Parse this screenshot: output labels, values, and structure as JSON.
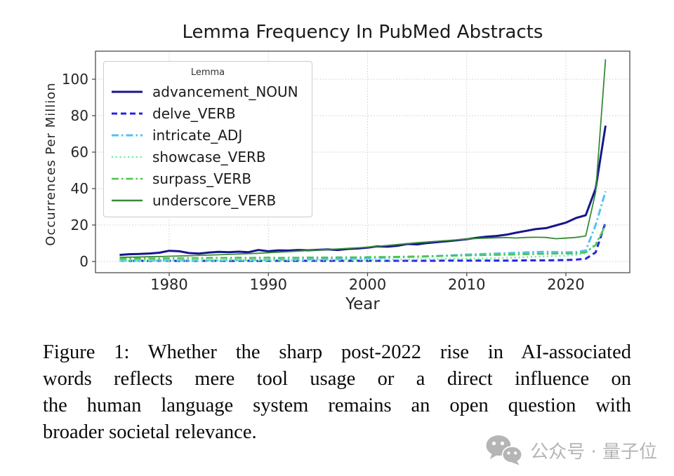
{
  "figure": {
    "title": "Lemma Frequency In PubMed Abstracts",
    "xlabel": "Year",
    "ylabel": "Occurrences Per Million",
    "legend_title": "Lemma"
  },
  "chart_data": {
    "type": "line",
    "title": "Lemma Frequency In PubMed Abstracts",
    "xlabel": "Year",
    "ylabel": "Occurrences Per Million",
    "legend_title": "Lemma",
    "legend_position": "upper left",
    "grid": true,
    "grid_style": "dotted",
    "xlim": [
      1972.6,
      2026.4
    ],
    "ylim": [
      -6.2,
      115.4
    ],
    "xticks": [
      1980,
      1990,
      2000,
      2010,
      2020
    ],
    "yticks": [
      0,
      20,
      40,
      60,
      80,
      100
    ],
    "x": [
      1975,
      1976,
      1977,
      1978,
      1979,
      1980,
      1981,
      1982,
      1983,
      1984,
      1985,
      1986,
      1987,
      1988,
      1989,
      1990,
      1991,
      1992,
      1993,
      1994,
      1995,
      1996,
      1997,
      1998,
      1999,
      2000,
      2001,
      2002,
      2003,
      2004,
      2005,
      2006,
      2007,
      2008,
      2009,
      2010,
      2011,
      2012,
      2013,
      2014,
      2015,
      2016,
      2017,
      2018,
      2019,
      2020,
      2021,
      2022,
      2023,
      2024
    ],
    "series": [
      {
        "name": "advancement_NOUN",
        "color": "#16168C",
        "dash": "solid",
        "width": 3,
        "values": [
          3.6,
          4.0,
          4.1,
          4.4,
          4.8,
          5.9,
          5.6,
          4.6,
          4.3,
          4.9,
          5.3,
          5.1,
          5.4,
          5.1,
          6.3,
          5.6,
          6.1,
          6.0,
          6.3,
          6.1,
          6.4,
          6.6,
          6.3,
          6.9,
          7.1,
          7.6,
          8.3,
          8.1,
          8.6,
          9.6,
          9.4,
          10.1,
          10.6,
          11.1,
          11.6,
          12.2,
          13.0,
          13.6,
          14.0,
          14.7,
          15.8,
          16.8,
          17.8,
          18.3,
          19.8,
          21.3,
          23.8,
          25.4,
          40.0,
          74.5
        ]
      },
      {
        "name": "delve_VERB",
        "color": "#2424E0",
        "dash": "dashed",
        "width": 3,
        "values": [
          0.4,
          0.3,
          0.4,
          0.3,
          0.4,
          0.4,
          0.3,
          0.4,
          0.3,
          0.4,
          0.4,
          0.3,
          0.4,
          0.4,
          0.3,
          0.4,
          0.4,
          0.3,
          0.4,
          0.4,
          0.4,
          0.3,
          0.4,
          0.4,
          0.4,
          0.4,
          0.4,
          0.4,
          0.4,
          0.4,
          0.4,
          0.4,
          0.4,
          0.5,
          0.5,
          0.5,
          0.5,
          0.5,
          0.5,
          0.5,
          0.5,
          0.6,
          0.6,
          0.6,
          0.7,
          0.8,
          1.0,
          1.5,
          5.0,
          21.5
        ]
      },
      {
        "name": "intricate_ADJ",
        "color": "#53C1F0",
        "dash": "dashdot",
        "width": 3,
        "values": [
          0.5,
          0.5,
          0.5,
          0.5,
          0.6,
          0.6,
          0.6,
          0.6,
          0.7,
          0.7,
          0.7,
          0.7,
          0.8,
          0.8,
          0.9,
          0.9,
          1.0,
          1.0,
          1.1,
          1.1,
          1.2,
          1.3,
          1.4,
          1.5,
          1.7,
          1.8,
          2.0,
          2.2,
          2.4,
          2.5,
          2.6,
          2.8,
          3.0,
          3.2,
          3.5,
          3.8,
          4.0,
          4.2,
          4.4,
          4.5,
          4.8,
          5.0,
          5.2,
          5.3,
          5.2,
          5.0,
          5.2,
          6.0,
          20.0,
          38.5
        ]
      },
      {
        "name": "showcase_VERB",
        "color": "#76E8A1",
        "dash": "dotted",
        "width": 2.5,
        "values": [
          0.3,
          0.3,
          0.3,
          0.3,
          0.3,
          0.4,
          0.4,
          0.4,
          0.4,
          0.4,
          0.5,
          1.2,
          0.6,
          0.5,
          0.5,
          0.6,
          0.6,
          0.6,
          0.7,
          0.7,
          0.7,
          0.8,
          0.8,
          0.8,
          0.9,
          0.9,
          1.0,
          1.0,
          1.1,
          1.1,
          1.2,
          1.3,
          1.3,
          1.4,
          1.5,
          1.5,
          1.6,
          1.7,
          1.8,
          2.0,
          2.2,
          2.4,
          2.6,
          2.8,
          3.0,
          3.2,
          3.6,
          4.5,
          10.0,
          19.5
        ]
      },
      {
        "name": "surpass_VERB",
        "color": "#4CC44C",
        "dash": "dashdot",
        "width": 2.5,
        "values": [
          1.5,
          1.6,
          1.6,
          1.7,
          1.7,
          1.8,
          1.8,
          1.9,
          1.9,
          2.0,
          2.0,
          2.0,
          2.1,
          2.0,
          2.1,
          2.1,
          2.0,
          2.1,
          2.1,
          2.2,
          2.2,
          2.2,
          2.3,
          2.3,
          2.3,
          2.4,
          2.5,
          2.5,
          2.6,
          2.7,
          2.8,
          2.9,
          3.0,
          3.1,
          3.2,
          3.3,
          3.4,
          3.5,
          3.6,
          3.7,
          3.8,
          4.0,
          4.1,
          4.2,
          4.3,
          4.3,
          4.4,
          5.0,
          9.0,
          20.0
        ]
      },
      {
        "name": "underscore_VERB",
        "color": "#398A39",
        "dash": "solid",
        "width": 1.8,
        "values": [
          2.3,
          2.4,
          2.5,
          2.6,
          2.7,
          2.9,
          3.0,
          3.1,
          3.3,
          3.5,
          3.7,
          3.9,
          4.1,
          4.3,
          4.5,
          4.8,
          5.1,
          5.4,
          5.7,
          6.0,
          6.3,
          6.6,
          6.9,
          7.2,
          7.5,
          7.9,
          8.3,
          8.8,
          9.3,
          9.8,
          10.3,
          10.7,
          11.1,
          11.5,
          11.9,
          12.3,
          12.6,
          12.8,
          13.0,
          13.1,
          12.9,
          13.2,
          13.3,
          13.2,
          12.5,
          12.8,
          13.2,
          14.0,
          38.0,
          111.0
        ]
      }
    ]
  },
  "caption": {
    "label": "Figure 1:",
    "lines": [
      "Figure 1: Whether the sharp post-2022 rise in AI-associated",
      "words reflects mere tool usage or a direct influence on",
      "the human language system remains an open question with",
      "broader societal relevance."
    ],
    "full_text": "Figure 1: Whether the sharp post-2022 rise in AI-associated words reflects mere tool usage or a direct influence on the human language system remains an open question with broader societal relevance."
  },
  "watermark": {
    "icon": "wechat-icon",
    "text": "公众号 · 量子位",
    "color": "#b5b5b5"
  },
  "colors": {
    "grid": "#cccccc",
    "spine": "#4d4d4d",
    "tick_label": "#262626",
    "background": "#ffffff"
  }
}
